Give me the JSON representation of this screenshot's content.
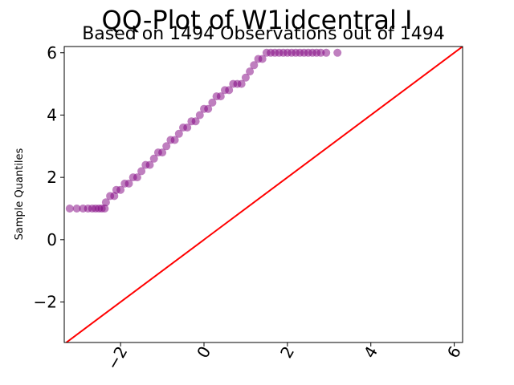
{
  "chart_data": {
    "type": "scatter",
    "title": "QQ-Plot of W1idcentral I",
    "subtitle": "Based on 1494 Observations out of 1494",
    "xlabel": "",
    "ylabel": "Sample Quantiles",
    "xlim": [
      -3.35,
      6.2
    ],
    "ylim": [
      -3.3,
      6.2
    ],
    "xticks": [
      -2,
      0,
      2,
      4,
      6
    ],
    "yticks": [
      -2,
      0,
      2,
      4,
      6
    ],
    "xtick_labels": [
      "−2",
      "0",
      "2",
      "4",
      "6"
    ],
    "ytick_labels": [
      "−2",
      "0",
      "2",
      "4",
      "6"
    ],
    "grid": false,
    "point_color": "#800080",
    "line_color": "#ff0000",
    "reference_line": {
      "x": [
        -3.35,
        6.2
      ],
      "y": [
        -3.35,
        6.2
      ]
    },
    "series": [
      {
        "x": [
          -3.22,
          -3.05,
          -2.9,
          -2.78,
          -2.68,
          -2.6,
          -2.52,
          -2.45,
          -2.38,
          -2.35,
          -2.25,
          -2.15,
          -2.1,
          -2.0,
          -1.9,
          -1.8,
          -1.7,
          -1.6,
          -1.5,
          -1.4,
          -1.3,
          -1.2,
          -1.1,
          -1.0,
          -0.9,
          -0.8,
          -0.7,
          -0.6,
          -0.5,
          -0.4,
          -0.3,
          -0.2,
          -0.1,
          0.0,
          0.1,
          0.2,
          0.3,
          0.4,
          0.5,
          0.6,
          0.7,
          0.8,
          0.9,
          1.0,
          1.1,
          1.2,
          1.3,
          1.4,
          1.5,
          1.6,
          1.7,
          1.8,
          1.9,
          2.0,
          2.1,
          2.2,
          2.3,
          2.4,
          2.5,
          2.6,
          2.7,
          2.8,
          2.93,
          3.2
        ],
        "y": [
          1.0,
          1.0,
          1.0,
          1.0,
          1.0,
          1.0,
          1.0,
          1.0,
          1.0,
          1.2,
          1.4,
          1.4,
          1.6,
          1.6,
          1.8,
          1.8,
          2.0,
          2.0,
          2.2,
          2.4,
          2.4,
          2.6,
          2.8,
          2.8,
          3.0,
          3.2,
          3.2,
          3.4,
          3.6,
          3.6,
          3.8,
          3.8,
          4.0,
          4.2,
          4.2,
          4.4,
          4.6,
          4.6,
          4.8,
          4.8,
          5.0,
          5.0,
          5.0,
          5.2,
          5.4,
          5.6,
          5.8,
          5.8,
          6.0,
          6.0,
          6.0,
          6.0,
          6.0,
          6.0,
          6.0,
          6.0,
          6.0,
          6.0,
          6.0,
          6.0,
          6.0,
          6.0,
          6.0,
          6.0
        ]
      }
    ]
  }
}
